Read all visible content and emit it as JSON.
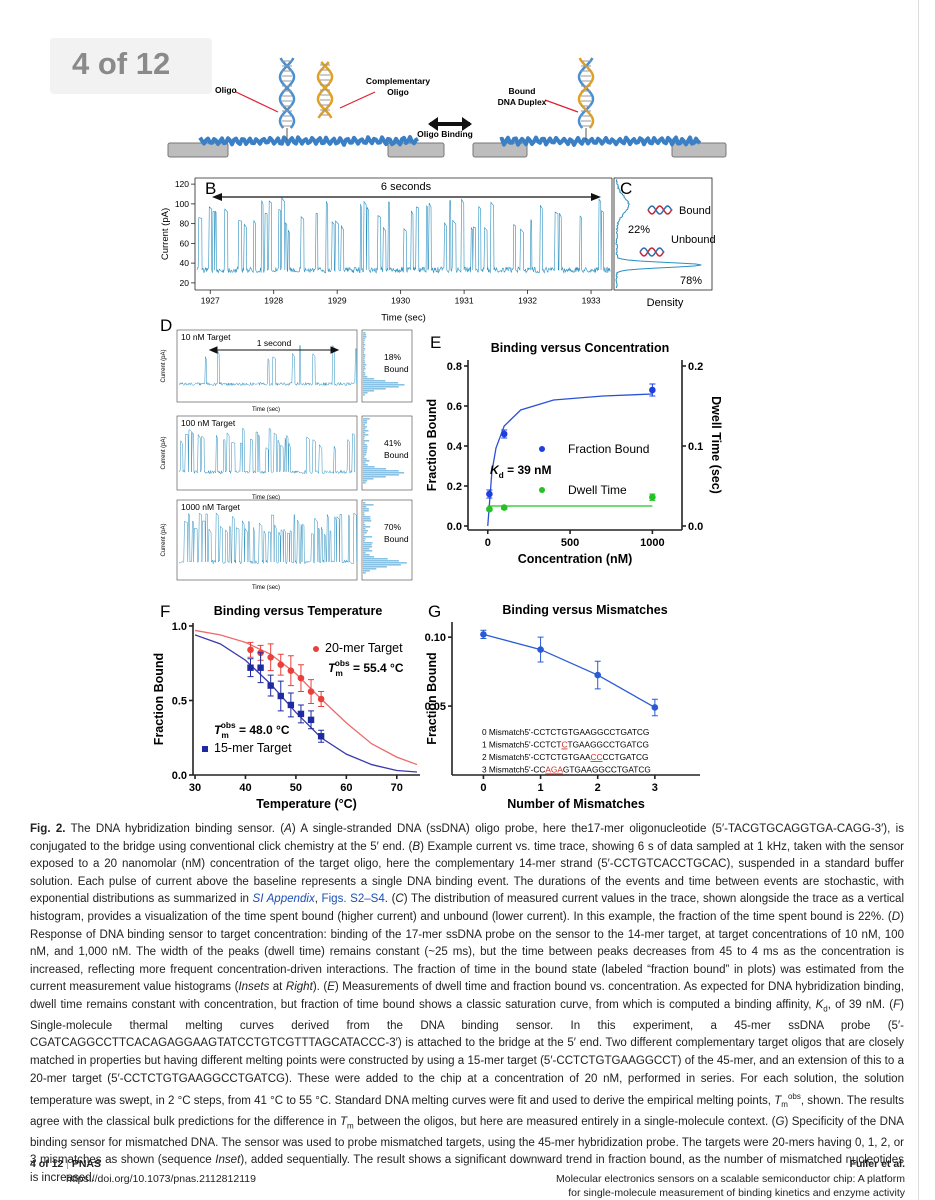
{
  "header": {
    "page_indicator": "4 of 12"
  },
  "figure": {
    "A": {
      "oligo": "Oligo",
      "complementary": [
        "Complementary",
        "Oligo"
      ],
      "binding": "Oligo Binding",
      "duplex": [
        "Bound",
        "DNA Duplex"
      ]
    },
    "B": {
      "type": "line",
      "label": "B",
      "annotation": "6 seconds",
      "xlabel": "Time (sec)",
      "ylabel": "Current (pA)",
      "xlim": [
        1926.76,
        1933.33
      ],
      "xticks": [
        1927,
        1928,
        1929,
        1930,
        1931,
        1932,
        1933
      ],
      "ylim": [
        12.8,
        126.2
      ],
      "yticks": [
        20,
        40,
        60,
        80,
        100,
        120
      ]
    },
    "C": {
      "label": "C",
      "bound": "Bound",
      "unbound": "Unbound",
      "bound_pct": "22%",
      "unbound_pct": "78%",
      "xlabel": "Density"
    },
    "D": {
      "label": "D",
      "scale_bar": "1 second",
      "xlabel": "Time (sec)",
      "ylabel": "Current (pA)",
      "panels": [
        {
          "target": "10 nM Target",
          "percent": "18%",
          "state": "Bound"
        },
        {
          "target": "100 nM Target",
          "percent": "41%",
          "state": "Bound"
        },
        {
          "target": "1000 nM Target",
          "percent": "70%",
          "state": "Bound"
        }
      ]
    },
    "E": {
      "type": "scatter",
      "label": "E",
      "title": "Binding versus Concentration",
      "xlabel": "Concentration (nM)",
      "ylabel": "Fraction Bound",
      "y2label": "Dwell Time (sec)",
      "xlim": [
        -120,
        1180
      ],
      "xticks": [
        0,
        500,
        1000
      ],
      "ylim": [
        -0.02,
        0.83
      ],
      "yticks": [
        {
          "value": 0,
          "label": "0.0"
        },
        0.2,
        0.4,
        0.6,
        0.8
      ],
      "y2lim": [
        -0.005,
        0.2075
      ],
      "y2ticks": [
        {
          "value": 0,
          "label": "0.0"
        },
        0.1,
        0.2
      ],
      "series": [
        {
          "name": "Fraction Bound",
          "color": "#1d3fe0",
          "marker": "circle",
          "x": [
            10,
            100,
            1000
          ],
          "values": [
            0.16,
            0.46,
            0.68
          ],
          "errors": [
            0.02,
            0.02,
            0.03
          ]
        },
        {
          "name": "Dwell Time",
          "color": "#22c322",
          "marker": "circle",
          "axis": "y2",
          "x": [
            10,
            100,
            1000
          ],
          "values": [
            0.021,
            0.023,
            0.036
          ],
          "errors": [
            0.002,
            0.002,
            0.004
          ]
        }
      ],
      "fits": [
        {
          "color": "#2b50d8",
          "x": [
            0,
            25,
            50,
            100,
            200,
            400,
            700,
            1000
          ],
          "values": [
            0,
            0.27,
            0.39,
            0.5,
            0.58,
            0.63,
            0.65,
            0.66
          ]
        },
        {
          "color": "#22c322",
          "axis": "y2",
          "x": [
            0,
            1000
          ],
          "values": [
            0.025,
            0.025
          ]
        }
      ],
      "annotation": {
        "base": "K",
        "sub": "d",
        "rest": " = 39 nM"
      }
    },
    "F": {
      "type": "scatter",
      "label": "F",
      "title": "Binding versus Temperature",
      "xlabel": "Temperature (°C)",
      "ylabel": "Fraction Bound",
      "xlim": [
        29.6,
        74.6
      ],
      "xticks": [
        30,
        40,
        50,
        60,
        70
      ],
      "ylim": [
        0,
        1.02
      ],
      "yticks": [
        {
          "value": 0,
          "label": "0.0"
        },
        0.5,
        {
          "value": 1,
          "label": "1.0"
        }
      ],
      "series": [
        {
          "name": "20-mer Target",
          "color": "#e8413c",
          "marker": "circle",
          "x": [
            41,
            43,
            45,
            47,
            49,
            51,
            53,
            55
          ],
          "values": [
            0.84,
            0.82,
            0.79,
            0.74,
            0.7,
            0.65,
            0.56,
            0.51
          ],
          "errors": [
            0.05,
            0.05,
            0.09,
            0.07,
            0.1,
            0.09,
            0.08,
            0.05
          ]
        },
        {
          "name": "15-mer Target",
          "color": "#1f2aa0",
          "marker": "square",
          "x": [
            41,
            43,
            45,
            47,
            49,
            51,
            53,
            55
          ],
          "values": [
            0.72,
            0.72,
            0.6,
            0.53,
            0.47,
            0.41,
            0.37,
            0.26
          ],
          "errors": [
            0.06,
            0.1,
            0.07,
            0.1,
            0.08,
            0.06,
            0.06,
            0.04
          ]
        }
      ],
      "fits": [
        {
          "color": "#ee6a6a",
          "x": [
            30,
            35,
            40,
            45,
            50,
            55,
            60,
            65,
            70,
            74
          ],
          "values": [
            0.97,
            0.94,
            0.89,
            0.81,
            0.68,
            0.51,
            0.35,
            0.21,
            0.12,
            0.07
          ]
        },
        {
          "color": "#3a3ab0",
          "x": [
            30,
            35,
            40,
            45,
            50,
            55,
            60,
            65,
            70,
            74
          ],
          "values": [
            0.94,
            0.88,
            0.77,
            0.61,
            0.42,
            0.25,
            0.14,
            0.07,
            0.03,
            0.02
          ]
        }
      ],
      "annotations": [
        {
          "base": "T",
          "sub": "m",
          "sup": "obs",
          "rest": " = 55.4 °C"
        },
        {
          "base": "T",
          "sub": "m",
          "sup": "obs",
          "rest": " = 48.0 °C"
        }
      ]
    },
    "G": {
      "type": "scatter",
      "label": "G",
      "title": "Binding versus Mismatches",
      "xlabel": "Number of Mismatches",
      "ylabel": "Fraction Bound",
      "xlim": [
        -0.55,
        3.79
      ],
      "xticks": [
        0,
        1,
        2,
        3
      ],
      "ylim": [
        0,
        0.111
      ],
      "yticks": [
        0.05,
        {
          "value": 0.1,
          "label": "0.10"
        }
      ],
      "series": [
        {
          "color": "#2a5bd7",
          "marker": "circle",
          "x": [
            0,
            1,
            2,
            3
          ],
          "values": [
            0.102,
            0.091,
            0.0725,
            0.049
          ],
          "errors": [
            0.003,
            0.009,
            0.01,
            0.006
          ]
        }
      ],
      "inset": [
        {
          "label": "0 Mismatch",
          "segments": [
            "5'-CCTCTGTGAAGGCCTGATCG"
          ]
        },
        {
          "label": "1 Mismatch",
          "segments": [
            "5'-CCTCT",
            "C",
            "TGAAGGCCTGATCG"
          ]
        },
        {
          "label": "2 Mismatch",
          "segments": [
            "5'-CCTCTGTGAA",
            "CC",
            "CCTGATCG"
          ]
        },
        {
          "label": "3 Mismatch",
          "segments": [
            "5'-CC",
            "AGA",
            "GTGAAGGCCTGATCG"
          ]
        }
      ]
    }
  },
  "caption": {
    "runs": [
      {
        "text": "Fig. 2.",
        "bold": true
      },
      {
        "text": " The DNA hybridization binding sensor. ("
      },
      {
        "text": "A",
        "italic": true
      },
      {
        "text": ") A single-stranded DNA (ssDNA) oligo probe, here the17-mer oligonucleotide (5′-TACGTGCAGGTGA-CAGG-3′), is conjugated to the bridge using conventional click chemistry at the 5′ end. ("
      },
      {
        "text": "B",
        "italic": true
      },
      {
        "text": ") Example current vs. time trace, showing 6 s of data sampled at 1 kHz, taken with the sensor exposed to a 20 nanomolar (nM) concentration of the target oligo, here the complementary 14-mer strand (5′-CCTGTCACCTGCAC), suspended in a standard buffer solution. Each pulse of current above the baseline represents a single DNA binding event. The durations of the events and time between events are stochastic, with exponential distributions as summarized in "
      },
      {
        "text": "SI Appendix",
        "italic": true,
        "link": true
      },
      {
        "text": ", "
      },
      {
        "text": "Figs. S2–S4",
        "link": true
      },
      {
        "text": ". ("
      },
      {
        "text": "C",
        "italic": true
      },
      {
        "text": ") The distribution of measured current values in the trace, shown alongside the trace as a vertical histogram, provides a visualization of the time spent bound (higher current) and unbound (lower current). In this example, the fraction of the time spent bound is 22%. ("
      },
      {
        "text": "D",
        "italic": true
      },
      {
        "text": ") Response of DNA binding sensor to target concentration: binding of the 17-mer ssDNA probe on the sensor to the 14-mer target, at target concentrations of 10 nM, 100 nM, and 1,000 nM. The width of the peaks (dwell time) remains constant (~25 ms), but the time between peaks decreases from 45 to 4 ms as the concentration is increased, reflecting more frequent concentration-driven interactions. The fraction of time in the bound state (labeled “fraction bound” in plots) was estimated from the current measurement value histograms ("
      },
      {
        "text": "Insets",
        "italic": true
      },
      {
        "text": " at "
      },
      {
        "text": "Right",
        "italic": true
      },
      {
        "text": "). ("
      },
      {
        "text": "E",
        "italic": true
      },
      {
        "text": ") Measurements of dwell time and fraction bound vs. concentration. As expected for DNA hybridization binding, dwell time remains constant with concentration, but fraction of time bound shows a classic saturation curve, from which is computed a binding affinity, "
      },
      {
        "text": "K",
        "italic": true
      },
      {
        "text": "d",
        "sub": true
      },
      {
        "text": ", of 39 nM. ("
      },
      {
        "text": "F",
        "italic": true
      },
      {
        "text": ") Single-molecule thermal melting curves derived from the DNA binding sensor. In this experiment, a 45-mer ssDNA probe (5′-CGATCAGGCCTTCACAGAGGAAGTATCCTGTCGTTTAGCATACCC-3′) is attached to the bridge at the 5′ end. Two different complementary target oligos that are closely matched in properties but having different melting points were constructed by using a 15-mer target (5′-CCTCTGTGAAGGCCT) of the 45-mer, and an extension of this to a 20-mer target (5′-CCTCTGTGAAGGCCTGATCG). These were added to the chip at a concentration of 20 nM, performed in series. For each solution, the solution temperature was swept, in 2 °C steps, from 41 °C to 55 °C. Standard DNA melting curves were fit and used to derive the empirical melting points, "
      },
      {
        "text": "T",
        "italic": true
      },
      {
        "text": "m",
        "sub": true
      },
      {
        "text": "obs",
        "sup": true
      },
      {
        "text": ", shown. The results agree with the classical bulk predictions for the difference in "
      },
      {
        "text": "T",
        "italic": true
      },
      {
        "text": "m",
        "sub": true
      },
      {
        "text": " between the oligos, but here are measured entirely in a single-molecule context. ("
      },
      {
        "text": "G",
        "italic": true
      },
      {
        "text": ") Specificity of the DNA binding sensor for mismatched DNA. The sensor was used to probe mismatched targets, using the 45-mer hybridization probe. The targets were 20-mers having 0, 1, 2, or 3 mismatches as shown (sequence "
      },
      {
        "text": "Inset",
        "italic": true
      },
      {
        "text": "), added sequentially. The result shows a significant downward trend in fraction bound, as the number of mismatched nucleotides is increased."
      }
    ]
  },
  "footer": {
    "page": "4 of 12",
    "journal": "PNAS",
    "doi": "https://doi.org/10.1073/pnas.2112812119",
    "authors": "Fuller et al.",
    "title_lines": [
      "Molecular electronics sensors on a scalable semiconductor chip: A platform",
      "for single-molecule measurement of binding kinetics and enzyme activity"
    ]
  }
}
